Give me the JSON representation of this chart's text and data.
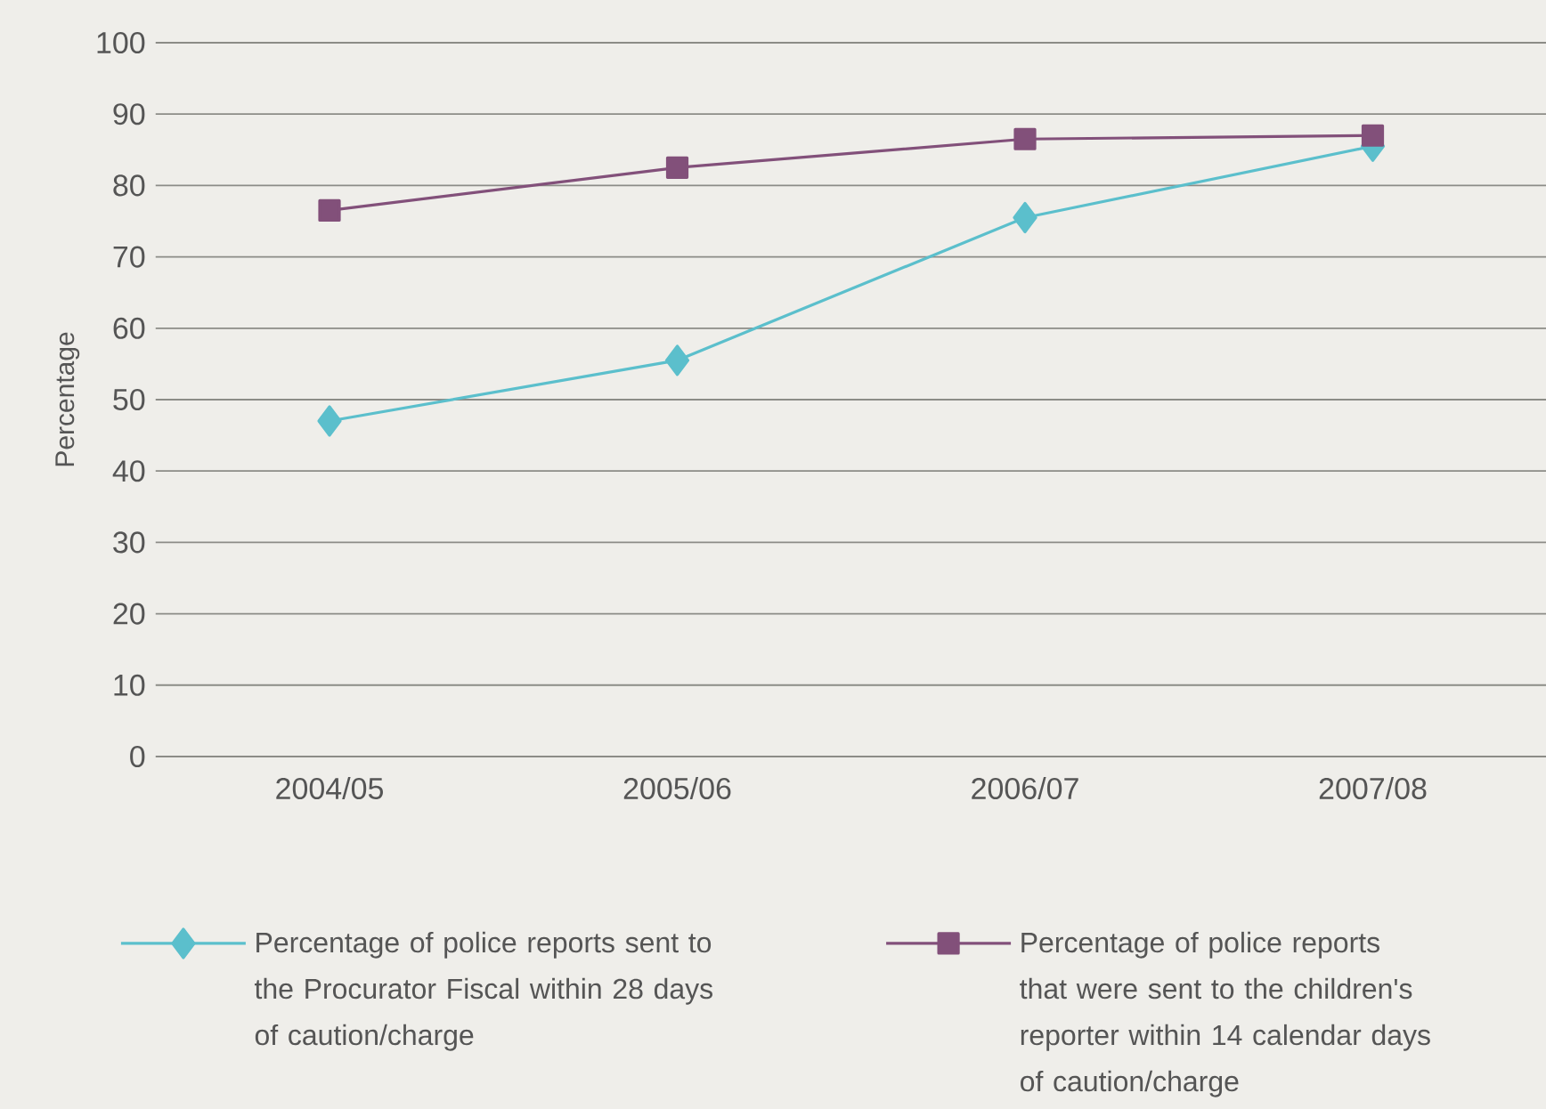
{
  "chart_data": {
    "type": "line",
    "ylabel": "Percentage",
    "categories": [
      "2004/05",
      "2005/06",
      "2006/07",
      "2007/08"
    ],
    "series": [
      {
        "name": "Percentage of police reports sent to the Procurator Fiscal within 28 days of caution/charge",
        "color": "#5bbfcc",
        "marker": "diamond",
        "values": [
          47,
          55.5,
          75.5,
          85.5
        ]
      },
      {
        "name": "Percentage of police reports that were sent to the children's reporter within 14 calendar days of caution/charge",
        "color": "#82507a",
        "marker": "square",
        "values": [
          76.5,
          82.5,
          86.5,
          87
        ]
      }
    ],
    "ylim": [
      0,
      100
    ],
    "yticks": [
      0,
      10,
      20,
      30,
      40,
      50,
      60,
      70,
      80,
      90,
      100
    ],
    "grid": "y",
    "legend": "bottom",
    "line_style": "solid"
  }
}
